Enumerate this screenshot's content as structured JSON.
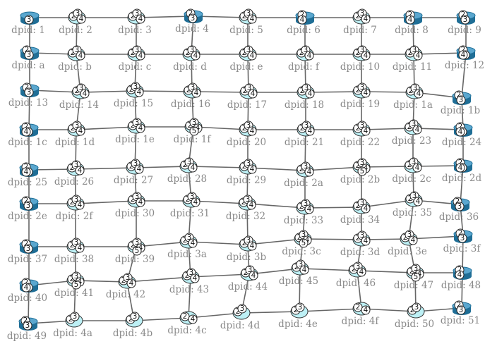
{
  "colors": {
    "link": "#666666",
    "router_body": "#1f6e96",
    "router_top": "#5aa7cf",
    "cloud_fill": "#bdf0f5",
    "label": "#8a8a8a"
  },
  "nodes": [
    {
      "id": "1",
      "label": "dpid: 1",
      "row": 0,
      "col": 0,
      "ports": [
        "3"
      ],
      "router": true
    },
    {
      "id": "2",
      "label": "dpid: 2",
      "row": 0,
      "col": 1,
      "ports": [
        "2",
        "3",
        "4"
      ],
      "router": false
    },
    {
      "id": "3",
      "label": "dpid: 3",
      "row": 0,
      "col": 2,
      "ports": [
        "2",
        "3",
        "4"
      ],
      "router": false
    },
    {
      "id": "4",
      "label": "dpid: 4",
      "row": 0,
      "col": 3,
      "ports": [
        "2",
        "3"
      ],
      "router": true
    },
    {
      "id": "5",
      "label": "dpid: 5",
      "row": 0,
      "col": 4,
      "ports": [
        "2",
        "3",
        "4"
      ],
      "router": false
    },
    {
      "id": "6",
      "label": "dpid: 6",
      "row": 0,
      "col": 5,
      "ports": [
        "2",
        "4"
      ],
      "router": true
    },
    {
      "id": "7",
      "label": "dpid: 7",
      "row": 0,
      "col": 6,
      "ports": [
        "2",
        "3",
        "4"
      ],
      "router": false
    },
    {
      "id": "8",
      "label": "dpid: 8",
      "row": 0,
      "col": 7,
      "ports": [
        "2",
        "4"
      ],
      "router": true
    },
    {
      "id": "9",
      "label": "dpid: 9",
      "row": 0,
      "col": 8,
      "ports": [
        "2",
        "3"
      ],
      "router": true
    },
    {
      "id": "a",
      "label": "dpid: a",
      "row": 1,
      "col": 0,
      "ports": [
        "2",
        "3"
      ],
      "router": true
    },
    {
      "id": "b",
      "label": "dpid: b",
      "row": 1,
      "col": 1,
      "ports": [
        "2",
        "3",
        "4"
      ],
      "router": false
    },
    {
      "id": "c",
      "label": "dpid: c",
      "row": 1,
      "col": 2,
      "ports": [
        "2",
        "3",
        "4"
      ],
      "router": false
    },
    {
      "id": "d",
      "label": "dpid: d",
      "row": 1,
      "col": 3,
      "ports": [
        "2",
        "3",
        "4"
      ],
      "router": false
    },
    {
      "id": "e",
      "label": "dpid: e",
      "row": 1,
      "col": 4,
      "ports": [
        "2",
        "3",
        "4"
      ],
      "router": false
    },
    {
      "id": "f",
      "label": "dpid: f",
      "row": 1,
      "col": 5,
      "ports": [
        "2",
        "3",
        "4"
      ],
      "router": false
    },
    {
      "id": "10",
      "label": "dpid: 10",
      "row": 1,
      "col": 6,
      "ports": [
        "2",
        "3",
        "4"
      ],
      "router": false
    },
    {
      "id": "11",
      "label": "dpid: 11",
      "row": 1,
      "col": 7,
      "ports": [
        "2",
        "3",
        "4"
      ],
      "router": false
    },
    {
      "id": "12",
      "label": "dpid: 12",
      "row": 1,
      "col": 8,
      "ports": [
        "2",
        "3",
        "4"
      ],
      "router": true
    },
    {
      "id": "13",
      "label": "dpid: 13",
      "row": 2,
      "col": 0,
      "ports": [
        "2",
        "3"
      ],
      "router": true
    },
    {
      "id": "14",
      "label": "dpid: 14",
      "row": 2,
      "col": 1,
      "ports": [
        "2",
        "3",
        "4"
      ],
      "router": false
    },
    {
      "id": "15",
      "label": "dpid: 15",
      "row": 2,
      "col": 2,
      "ports": [
        "2",
        "3",
        "4"
      ],
      "router": false
    },
    {
      "id": "16",
      "label": "dpid: 16",
      "row": 2,
      "col": 3,
      "ports": [
        "2",
        "3",
        "4"
      ],
      "router": false
    },
    {
      "id": "17",
      "label": "dpid: 17",
      "row": 2,
      "col": 4,
      "ports": [
        "2",
        "3",
        "4"
      ],
      "router": false
    },
    {
      "id": "18",
      "label": "dpid: 18",
      "row": 2,
      "col": 5,
      "ports": [
        "2",
        "3",
        "4"
      ],
      "router": false
    },
    {
      "id": "19",
      "label": "dpid: 19",
      "row": 2,
      "col": 6,
      "ports": [
        "2",
        "3",
        "4"
      ],
      "router": false
    },
    {
      "id": "1a",
      "label": "dpid: 1a",
      "row": 2,
      "col": 7,
      "ports": [
        "2",
        "3",
        "4"
      ],
      "router": false
    },
    {
      "id": "1b",
      "label": "dpid: 1b",
      "row": 2,
      "col": 8,
      "ports": [
        "2",
        "3"
      ],
      "router": true
    },
    {
      "id": "1c",
      "label": "dpid: 1c",
      "row": 3,
      "col": 0,
      "ports": [
        "2",
        "3",
        "4"
      ],
      "router": true
    },
    {
      "id": "1d",
      "label": "dpid: 1d",
      "row": 3,
      "col": 1,
      "ports": [
        "2",
        "3",
        "4"
      ],
      "router": false
    },
    {
      "id": "1e",
      "label": "dpid: 1e",
      "row": 3,
      "col": 2,
      "ports": [
        "2",
        "3",
        "4"
      ],
      "router": false
    },
    {
      "id": "1f",
      "label": "dpid: 1f",
      "row": 3,
      "col": 3,
      "ports": [
        "2",
        "3",
        "4",
        "5"
      ],
      "router": false
    },
    {
      "id": "20",
      "label": "dpid: 20",
      "row": 3,
      "col": 4,
      "ports": [
        "2",
        "3",
        "4"
      ],
      "router": false
    },
    {
      "id": "21",
      "label": "dpid: 21",
      "row": 3,
      "col": 5,
      "ports": [
        "2",
        "3",
        "4"
      ],
      "router": false
    },
    {
      "id": "22",
      "label": "dpid: 22",
      "row": 3,
      "col": 6,
      "ports": [
        "2",
        "3",
        "4"
      ],
      "router": false
    },
    {
      "id": "23",
      "label": "dpid: 23",
      "row": 3,
      "col": 7,
      "ports": [
        "2",
        "3",
        "4"
      ],
      "router": false
    },
    {
      "id": "24",
      "label": "dpid: 24",
      "row": 3,
      "col": 8,
      "ports": [
        "2",
        "3",
        "4"
      ],
      "router": true
    },
    {
      "id": "25",
      "label": "dpid: 25",
      "row": 4,
      "col": 0,
      "ports": [
        "2",
        "3",
        "4"
      ],
      "router": true
    },
    {
      "id": "26",
      "label": "dpid: 26",
      "row": 4,
      "col": 1,
      "ports": [
        "2",
        "3",
        "4"
      ],
      "router": false
    },
    {
      "id": "27",
      "label": "dpid: 27",
      "row": 4,
      "col": 2,
      "ports": [
        "2",
        "3",
        "4"
      ],
      "router": false
    },
    {
      "id": "28",
      "label": "dpid: 28",
      "row": 4,
      "col": 3,
      "ports": [
        "2",
        "3",
        "4"
      ],
      "router": false
    },
    {
      "id": "29",
      "label": "dpid: 29",
      "row": 4,
      "col": 4,
      "ports": [
        "2",
        "3",
        "4"
      ],
      "router": false
    },
    {
      "id": "2a",
      "label": "dpid: 2a",
      "row": 4,
      "col": 5,
      "ports": [
        "2",
        "3",
        "4"
      ],
      "router": false
    },
    {
      "id": "2b",
      "label": "dpid: 2b",
      "row": 4,
      "col": 6,
      "ports": [
        "2",
        "3",
        "4",
        "5"
      ],
      "router": false
    },
    {
      "id": "2c",
      "label": "dpid: 2c",
      "row": 4,
      "col": 7,
      "ports": [
        "2",
        "3",
        "4"
      ],
      "router": false
    },
    {
      "id": "2d",
      "label": "dpid: 2d",
      "row": 4,
      "col": 8,
      "ports": [
        "2",
        "3",
        "4"
      ],
      "router": true
    },
    {
      "id": "2e",
      "label": "dpid: 2e",
      "row": 5,
      "col": 0,
      "ports": [
        "2",
        "3"
      ],
      "router": true
    },
    {
      "id": "2f",
      "label": "dpid: 2f",
      "row": 5,
      "col": 1,
      "ports": [
        "2",
        "3",
        "4"
      ],
      "router": false
    },
    {
      "id": "30",
      "label": "dpid: 30",
      "row": 5,
      "col": 2,
      "ports": [
        "2",
        "3",
        "4"
      ],
      "router": false
    },
    {
      "id": "31",
      "label": "dpid: 31",
      "row": 5,
      "col": 3,
      "ports": [
        "2",
        "3",
        "4"
      ],
      "router": false
    },
    {
      "id": "32",
      "label": "dpid: 32",
      "row": 5,
      "col": 4,
      "ports": [
        "2",
        "3",
        "4"
      ],
      "router": false
    },
    {
      "id": "33",
      "label": "dpid: 33",
      "row": 5,
      "col": 5,
      "ports": [
        "2",
        "3",
        "4"
      ],
      "router": false
    },
    {
      "id": "34",
      "label": "dpid: 34",
      "row": 5,
      "col": 6,
      "ports": [
        "2",
        "3",
        "4"
      ],
      "router": false
    },
    {
      "id": "35",
      "label": "dpid: 35",
      "row": 5,
      "col": 7,
      "ports": [
        "2",
        "3",
        "4"
      ],
      "router": false
    },
    {
      "id": "36",
      "label": "dpid: 36",
      "row": 5,
      "col": 8,
      "ports": [
        "2",
        "3"
      ],
      "router": true
    },
    {
      "id": "37",
      "label": "dpid: 37",
      "row": 6,
      "col": 0,
      "ports": [
        "2",
        "3"
      ],
      "router": true
    },
    {
      "id": "38",
      "label": "dpid: 38",
      "row": 6,
      "col": 1,
      "ports": [
        "2",
        "3",
        "4"
      ],
      "router": false
    },
    {
      "id": "39",
      "label": "dpid: 39",
      "row": 6,
      "col": 2,
      "ports": [
        "2",
        "3",
        "4",
        "5"
      ],
      "router": false
    },
    {
      "id": "3a",
      "label": "dpid: 3a",
      "row": 6,
      "col": 3,
      "ports": [
        "2",
        "3",
        "4"
      ],
      "router": false
    },
    {
      "id": "3b",
      "label": "dpid: 3b",
      "row": 6,
      "col": 4,
      "ports": [
        "2",
        "3",
        "4"
      ],
      "router": false
    },
    {
      "id": "3c",
      "label": "dpid: 3c",
      "row": 6,
      "col": 5,
      "ports": [
        "2",
        "3",
        "4",
        "5"
      ],
      "router": false
    },
    {
      "id": "3d",
      "label": "dpid: 3d",
      "row": 6,
      "col": 6,
      "ports": [
        "2",
        "3",
        "4"
      ],
      "router": false
    },
    {
      "id": "3e",
      "label": "dpid: 3e",
      "row": 6,
      "col": 7,
      "ports": [
        "2",
        "3",
        "4"
      ],
      "router": false
    },
    {
      "id": "3f",
      "label": "dpid: 3f",
      "row": 6,
      "col": 8,
      "ports": [
        "2",
        "3"
      ],
      "router": true
    },
    {
      "id": "40",
      "label": "dpid: 40",
      "row": 7,
      "col": 0,
      "ports": [
        "2",
        "3",
        "4"
      ],
      "router": true
    },
    {
      "id": "41",
      "label": "dpid: 41",
      "row": 7,
      "col": 1,
      "ports": [
        "2",
        "3",
        "4",
        "5"
      ],
      "router": false
    },
    {
      "id": "42",
      "label": "dpid: 42",
      "row": 7,
      "col": 2,
      "ports": [
        "2",
        "3",
        "4"
      ],
      "router": false
    },
    {
      "id": "43",
      "label": "dpid: 43",
      "row": 7,
      "col": 3,
      "ports": [
        "2",
        "3",
        "4"
      ],
      "router": false
    },
    {
      "id": "44",
      "label": "dpid: 44",
      "row": 7,
      "col": 4,
      "ports": [
        "2",
        "3",
        "4"
      ],
      "router": false
    },
    {
      "id": "45",
      "label": "dpid: 45",
      "row": 7,
      "col": 5,
      "ports": [
        "2",
        "3",
        "4"
      ],
      "router": false
    },
    {
      "id": "46",
      "label": "dpid: 46",
      "row": 7,
      "col": 6,
      "ports": [
        "2",
        "3",
        "4"
      ],
      "router": false
    },
    {
      "id": "47",
      "label": "dpid: 47",
      "row": 7,
      "col": 7,
      "ports": [
        "2",
        "3",
        "4",
        "5"
      ],
      "router": false
    },
    {
      "id": "48",
      "label": "dpid: 48",
      "row": 7,
      "col": 8,
      "ports": [
        "2",
        "4"
      ],
      "router": true
    },
    {
      "id": "49",
      "label": "dpid: 49",
      "row": 8,
      "col": 0,
      "ports": [
        "2",
        "3"
      ],
      "router": true
    },
    {
      "id": "4a",
      "label": "dpid: 4a",
      "row": 8,
      "col": 1,
      "ports": [
        "2",
        "3"
      ],
      "router": false
    },
    {
      "id": "4b",
      "label": "dpid: 4b",
      "row": 8,
      "col": 2,
      "ports": [
        "2",
        "3"
      ],
      "router": false
    },
    {
      "id": "4c",
      "label": "dpid: 4c",
      "row": 8,
      "col": 3,
      "ports": [
        "2",
        "4"
      ],
      "router": false
    },
    {
      "id": "4d",
      "label": "dpid: 4d",
      "row": 8,
      "col": 4,
      "ports": [
        "2",
        "3"
      ],
      "router": false
    },
    {
      "id": "4e",
      "label": "dpid: 4e",
      "row": 8,
      "col": 5,
      "ports": [
        "2",
        "3"
      ],
      "router": false
    },
    {
      "id": "4f",
      "label": "dpid: 4f",
      "row": 8,
      "col": 6,
      "ports": [
        "2",
        "4"
      ],
      "router": false
    },
    {
      "id": "50",
      "label": "dpid: 50",
      "row": 8,
      "col": 7,
      "ports": [
        "2",
        "3"
      ],
      "router": false
    },
    {
      "id": "51",
      "label": "dpid: 51",
      "row": 8,
      "col": 8,
      "ports": [
        "2",
        "3"
      ],
      "router": true
    }
  ]
}
